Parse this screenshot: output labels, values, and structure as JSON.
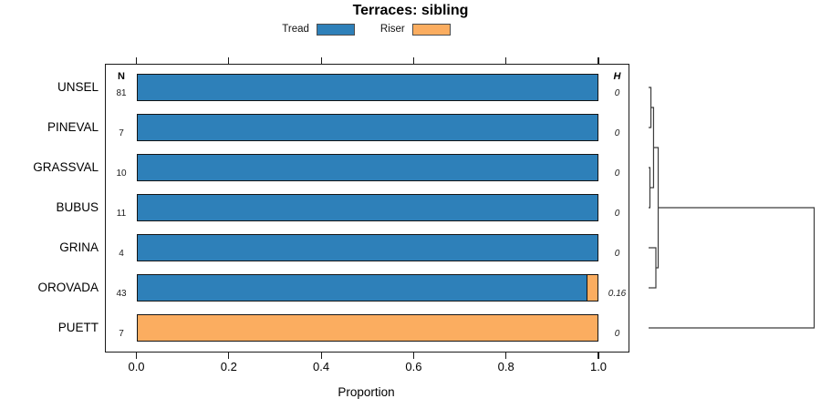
{
  "title": "Terraces: sibling",
  "legend": {
    "items": [
      {
        "label": "Tread",
        "color": "#2E80B9"
      },
      {
        "label": "Riser",
        "color": "#FBAD60"
      }
    ]
  },
  "axis": {
    "xlabel": "Proportion"
  },
  "columns": {
    "n_header": "N",
    "h_header": "H"
  },
  "chart_data": {
    "type": "bar",
    "orientation": "horizontal",
    "stacked": true,
    "title": "Terraces: sibling",
    "xlabel": "Proportion",
    "xlim": [
      0,
      1
    ],
    "grid": false,
    "legend_position": "top",
    "xticks": [
      {
        "v": 0.0,
        "label": "0.0"
      },
      {
        "v": 0.2,
        "label": "0.2"
      },
      {
        "v": 0.4,
        "label": "0.4"
      },
      {
        "v": 0.6,
        "label": "0.6"
      },
      {
        "v": 0.8,
        "label": "0.8"
      },
      {
        "v": 1.0,
        "label": "1.0"
      }
    ],
    "categories": [
      "UNSEL",
      "PINEVAL",
      "GRASSVAL",
      "BUBUS",
      "GRINA",
      "OROVADA",
      "PUETT"
    ],
    "n_values": [
      81,
      7,
      10,
      11,
      4,
      43,
      7
    ],
    "h_values": [
      "0",
      "0",
      "0",
      "0",
      "0",
      "0.16",
      "0"
    ],
    "series": [
      {
        "name": "Tread",
        "color": "#2E80B9",
        "values": [
          1,
          1,
          1,
          1,
          1,
          0.977,
          0
        ]
      },
      {
        "name": "Riser",
        "color": "#FBAD60",
        "values": [
          0,
          0,
          0,
          0,
          0,
          0.023,
          1
        ]
      }
    ],
    "dendrogram": {
      "leaves": [
        "UNSEL",
        "PINEVAL",
        "GRASSVAL",
        "BUBUS",
        "GRINA",
        "OROVADA",
        "PUETT"
      ],
      "merges": [
        {
          "a": "L0",
          "b": "L1",
          "h": 0.014
        },
        {
          "a": "L2",
          "b": "L3",
          "h": 0.008
        },
        {
          "a": "M0",
          "b": "M1",
          "h": 0.03
        },
        {
          "a": "L4",
          "b": "L5",
          "h": 0.044
        },
        {
          "a": "M2",
          "b": "M3",
          "h": 0.058
        },
        {
          "a": "M4",
          "b": "L6",
          "h": 1.0
        }
      ]
    }
  }
}
